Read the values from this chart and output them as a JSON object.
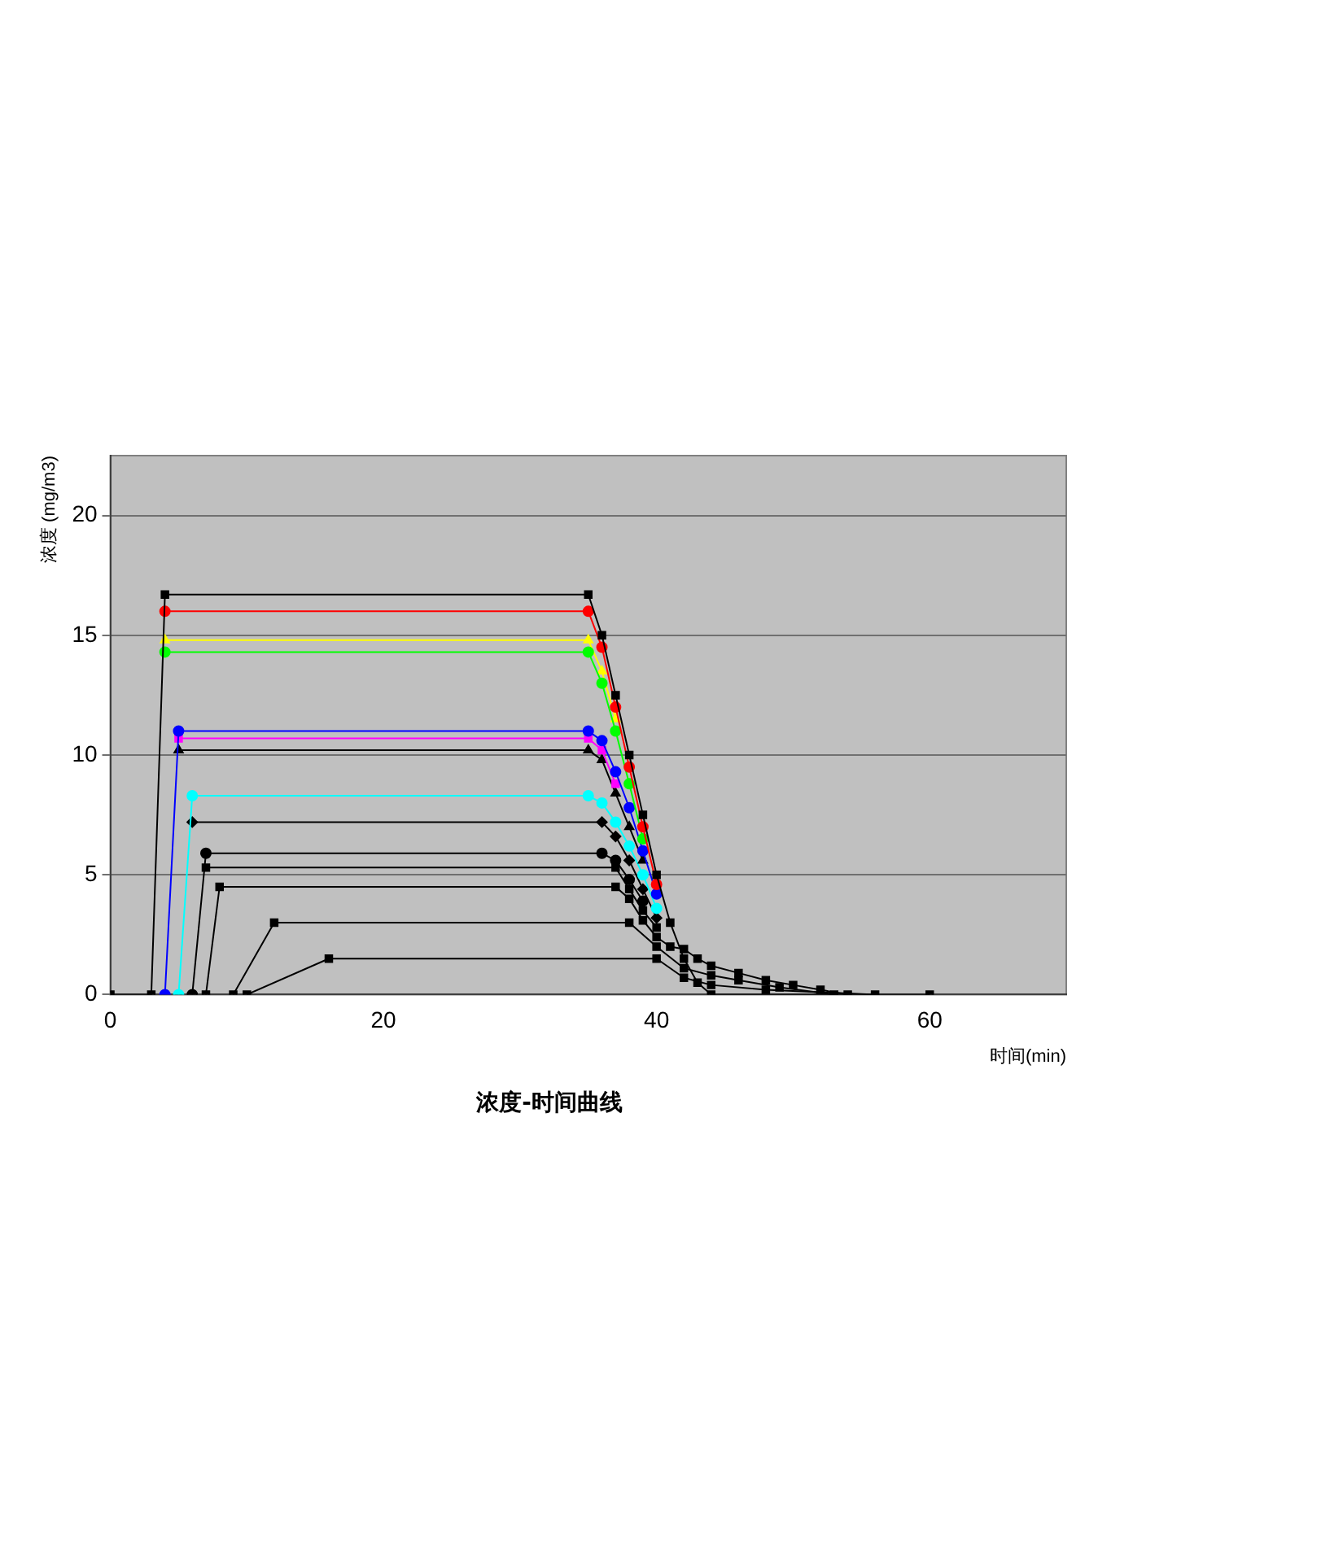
{
  "chart_data": {
    "type": "line",
    "title": "浓度-时间曲线",
    "xlabel": "时间(min)",
    "ylabel": "浓度 (mg/m3)",
    "xlim": [
      0,
      70
    ],
    "xticks": [
      0,
      20,
      40,
      60
    ],
    "ylim": [
      0,
      22.5
    ],
    "yticks": [
      0,
      5,
      10,
      15,
      20
    ],
    "grid": "y",
    "legend": false,
    "series": [
      {
        "color": "#000000",
        "marker": "square",
        "x": [
          0,
          3,
          4,
          35,
          36,
          37,
          38,
          39,
          40,
          41,
          42,
          43,
          44,
          60
        ],
        "values": [
          0,
          0,
          16.7,
          16.7,
          15,
          12.5,
          10,
          7.5,
          5,
          3,
          1.5,
          0.5,
          0,
          0
        ]
      },
      {
        "color": "#ff0000",
        "marker": "circle",
        "x": [
          4,
          35,
          36,
          37,
          38,
          39,
          40
        ],
        "values": [
          16,
          16,
          14.5,
          12,
          9.5,
          7,
          4.6
        ]
      },
      {
        "color": "#00ff00",
        "marker": "circle",
        "x": [
          4,
          35,
          36,
          37,
          38,
          39
        ],
        "values": [
          14.3,
          14.3,
          13,
          11,
          8.8,
          6.5
        ]
      },
      {
        "color": "#ffff00",
        "marker": "triangle",
        "x": [
          4,
          35,
          36,
          37
        ],
        "values": [
          14.8,
          14.8,
          13.5,
          11.5
        ]
      },
      {
        "color": "#0000ff",
        "marker": "circle",
        "x": [
          4,
          5,
          35,
          36,
          37,
          38,
          39,
          40
        ],
        "values": [
          0,
          11,
          11,
          10.6,
          9.3,
          7.8,
          6,
          4.2
        ]
      },
      {
        "color": "#ff00ff",
        "marker": "square",
        "x": [
          5,
          35,
          36,
          37
        ],
        "values": [
          10.7,
          10.7,
          10.2,
          8.8
        ]
      },
      {
        "color": "#000000",
        "marker": "triangle",
        "x": [
          5,
          35,
          36,
          37,
          38,
          39
        ],
        "values": [
          10.2,
          10.2,
          9.8,
          8.4,
          7,
          5.6
        ]
      },
      {
        "color": "#00ffff",
        "marker": "circle",
        "x": [
          5,
          6,
          35,
          36,
          37,
          38,
          39,
          40
        ],
        "values": [
          0,
          8.3,
          8.3,
          8,
          7.2,
          6.2,
          5,
          3.6
        ]
      },
      {
        "color": "#000000",
        "marker": "diamond",
        "x": [
          6,
          36,
          37,
          38,
          39,
          40
        ],
        "values": [
          7.2,
          7.2,
          6.6,
          5.6,
          4.4,
          3.2
        ]
      },
      {
        "color": "#000000",
        "marker": "circle",
        "x": [
          6,
          7,
          36,
          37,
          38,
          39
        ],
        "values": [
          0,
          5.9,
          5.9,
          5.6,
          4.8,
          3.9
        ]
      },
      {
        "color": "#000000",
        "marker": "square",
        "x": [
          7,
          37,
          38,
          39,
          40
        ],
        "values": [
          5.3,
          5.3,
          4.4,
          3.5,
          2.8
        ]
      },
      {
        "color": "#000000",
        "marker": "square",
        "x": [
          7,
          8,
          37,
          38,
          39,
          40,
          41,
          42,
          43,
          44,
          46,
          48,
          50,
          52,
          54
        ],
        "values": [
          0,
          4.5,
          4.5,
          4,
          3.1,
          2.4,
          2,
          1.9,
          1.5,
          1.2,
          0.9,
          0.6,
          0.4,
          0.2,
          0
        ]
      },
      {
        "color": "#000000",
        "marker": "square",
        "x": [
          9,
          12,
          38,
          40,
          42,
          44,
          46,
          49,
          53
        ],
        "values": [
          0,
          3,
          3,
          2,
          1.1,
          0.8,
          0.6,
          0.3,
          0
        ]
      },
      {
        "color": "#000000",
        "marker": "square",
        "x": [
          10,
          16,
          40,
          42,
          44,
          48,
          56
        ],
        "values": [
          0,
          1.5,
          1.5,
          0.7,
          0.4,
          0.2,
          0
        ]
      }
    ]
  }
}
